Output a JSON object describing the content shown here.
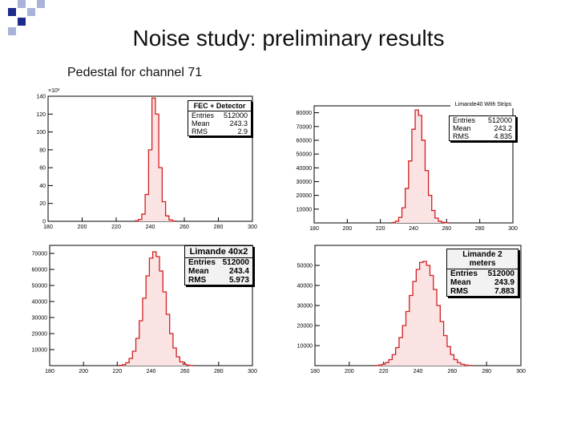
{
  "page": {
    "title": "Noise study: preliminary results",
    "subtitle": "Pedestal for channel 71"
  },
  "colors": {
    "histogram": "#d21f1f",
    "deco_blue": "#1f2a8c",
    "deco_light": "#a9b3d9"
  },
  "chart_data": [
    {
      "type": "bar",
      "xlim": [
        180,
        300
      ],
      "ylim": [
        0,
        140
      ],
      "y_exponent_label": "×10³",
      "x_ticks": [
        "180",
        "200",
        "220",
        "240",
        "260",
        "280",
        "300"
      ],
      "y_ticks": [
        "0",
        "20",
        "40",
        "60",
        "80",
        "100",
        "120",
        "140"
      ],
      "x": [
        232,
        234,
        236,
        238,
        240,
        242,
        244,
        246,
        248,
        250,
        252,
        254
      ],
      "values": [
        0.5,
        2,
        8,
        30,
        80,
        138,
        120,
        60,
        22,
        6,
        1.5,
        0.3
      ],
      "stats": {
        "title": "FEC + Detector",
        "entries": "512000",
        "mean": "243.3",
        "rms": "2.9"
      }
    },
    {
      "type": "bar",
      "xlim": [
        180,
        300
      ],
      "ylim": [
        0,
        85000
      ],
      "x_ticks": [
        "180",
        "200",
        "220",
        "240",
        "260",
        "280",
        "300"
      ],
      "y_ticks": [
        "10000",
        "20000",
        "30000",
        "40000",
        "50000",
        "60000",
        "70000",
        "80000"
      ],
      "x": [
        228,
        230,
        232,
        234,
        236,
        238,
        240,
        242,
        244,
        246,
        248,
        250,
        252,
        254,
        256,
        258,
        260
      ],
      "values": [
        300,
        1200,
        4000,
        11000,
        25000,
        45000,
        68000,
        82000,
        78000,
        60000,
        38000,
        20000,
        9000,
        3500,
        1200,
        400,
        100
      ],
      "stats": {
        "title": "Limande40 With Strips",
        "entries": "512000",
        "mean": "243.2",
        "rms": "4.835"
      }
    },
    {
      "type": "bar",
      "xlim": [
        180,
        300
      ],
      "ylim": [
        0,
        75000
      ],
      "x_ticks": [
        "180",
        "200",
        "220",
        "240",
        "260",
        "280",
        "300"
      ],
      "y_ticks": [
        "10000",
        "20000",
        "30000",
        "40000",
        "50000",
        "60000",
        "70000"
      ],
      "x": [
        222,
        224,
        226,
        228,
        230,
        232,
        234,
        236,
        238,
        240,
        242,
        244,
        246,
        248,
        250,
        252,
        254,
        256,
        258,
        260,
        262,
        264
      ],
      "values": [
        200,
        600,
        1800,
        4500,
        9000,
        17000,
        28000,
        42000,
        56000,
        67000,
        71000,
        68000,
        59000,
        46000,
        32000,
        20000,
        11000,
        5500,
        2400,
        900,
        300,
        100
      ],
      "stats": {
        "title": "Limande 40x2",
        "entries": "512000",
        "mean": "243.4",
        "rms": "5.973"
      }
    },
    {
      "type": "bar",
      "xlim": [
        180,
        300
      ],
      "ylim": [
        0,
        60000
      ],
      "x_ticks": [
        "180",
        "200",
        "220",
        "240",
        "260",
        "280",
        "300"
      ],
      "y_ticks": [
        "10000",
        "20000",
        "30000",
        "40000",
        "50000"
      ],
      "x": [
        216,
        218,
        220,
        222,
        224,
        226,
        228,
        230,
        232,
        234,
        236,
        238,
        240,
        242,
        244,
        246,
        248,
        250,
        252,
        254,
        256,
        258,
        260,
        262,
        264,
        266,
        268,
        270
      ],
      "values": [
        100,
        300,
        700,
        1500,
        3000,
        5500,
        9000,
        14000,
        20000,
        27000,
        35000,
        42000,
        48000,
        51500,
        52000,
        50000,
        45000,
        38000,
        30000,
        22000,
        15000,
        9500,
        5500,
        3000,
        1500,
        700,
        300,
        100
      ],
      "stats": {
        "title": "Limande 2 meters",
        "entries": "512000",
        "mean": "243.9",
        "rms": "7.883"
      }
    }
  ]
}
